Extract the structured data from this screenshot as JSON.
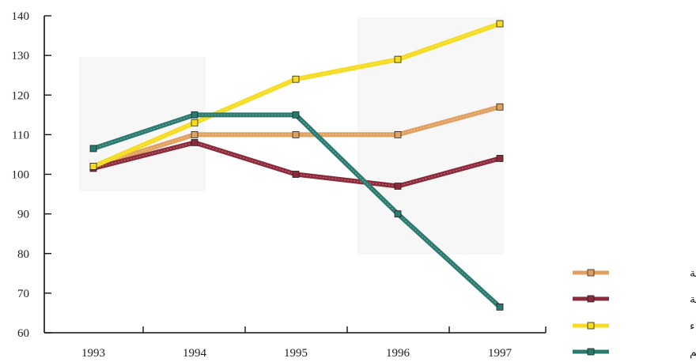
{
  "chart_data": {
    "type": "line",
    "title": "",
    "xlabel": "",
    "ylabel": "",
    "categories": [
      "1993",
      "1994",
      "1995",
      "1996",
      "1997"
    ],
    "ylim": [
      60,
      140
    ],
    "yticks": [
      "140",
      "130",
      "120",
      "110",
      "100",
      "90",
      "80",
      "70",
      "60"
    ],
    "grid": false,
    "legend_position": "right",
    "series": [
      {
        "name": "مجموع الطاقة",
        "color": "#e0a060",
        "values": [
          102,
          110,
          110,
          110,
          117
        ]
      },
      {
        "name": "المواد النفطية",
        "color": "#8c2a3a",
        "values": [
          101.5,
          108,
          100,
          97,
          104
        ]
      },
      {
        "name": "الكهرباء",
        "color": "#f5dc20",
        "values": [
          102,
          113,
          124,
          129,
          138
        ]
      },
      {
        "name": "الفحم",
        "color": "#2a7a70",
        "values": [
          106.5,
          115,
          115,
          90,
          66.5
        ]
      }
    ]
  }
}
